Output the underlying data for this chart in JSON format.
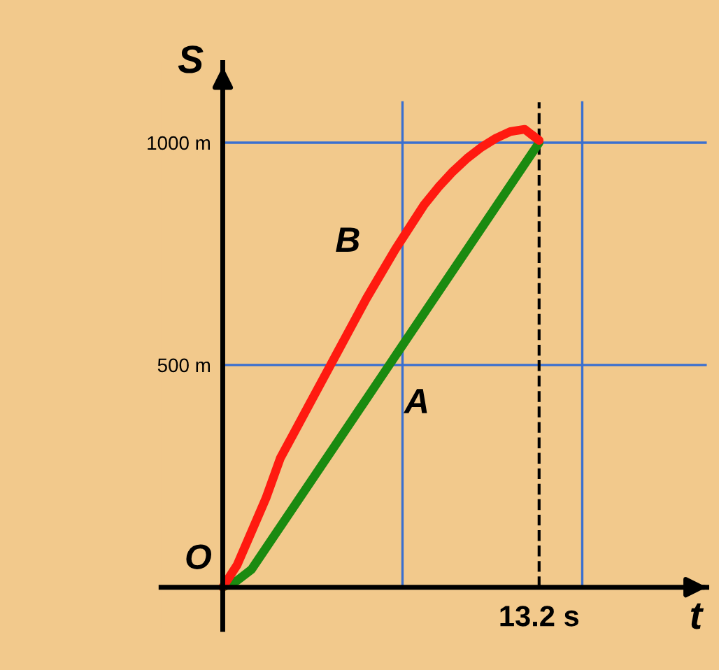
{
  "chart_data": {
    "type": "line",
    "xlabel": "t",
    "ylabel": "S",
    "categories": [
      null,
      null,
      null,
      null,
      null,
      null,
      null,
      null,
      null,
      null,
      null,
      null,
      null,
      null,
      null,
      null,
      null,
      null,
      null,
      null,
      null,
      null,
      null
    ],
    "ylim": [
      -95,
      1180
    ],
    "yticks": [
      {
        "value": 500,
        "label": "500 m"
      },
      {
        "value": 1000,
        "label": "1000 m"
      }
    ],
    "grid": "y",
    "legend": false,
    "marker": "none",
    "line_style": "solid",
    "annotations": [
      "O",
      "13.2 s"
    ],
    "series": [
      {
        "name": "A",
        "color": "#1a8a10",
        "values": [
          0,
          15,
          40,
          88,
          136,
          184,
          232,
          280,
          328,
          376,
          424,
          472,
          520,
          568,
          616,
          664,
          712,
          760,
          808,
          856,
          904,
          952,
          1000
        ]
      },
      {
        "name": "B",
        "color": "#ff1a10",
        "values": [
          0,
          50,
          125,
          200,
          290,
          350,
          410,
          470,
          530,
          590,
          650,
          705,
          760,
          810,
          860,
          900,
          935,
          965,
          990,
          1010,
          1025,
          1030,
          1005
        ]
      }
    ]
  }
}
